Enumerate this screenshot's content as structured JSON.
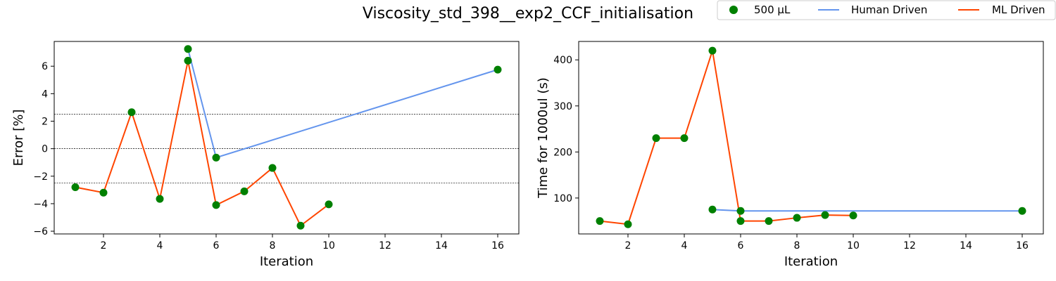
{
  "figure": {
    "title": "Viscosity_std_398__exp2_CCF_initialisation"
  },
  "legend": {
    "placement": "top-right",
    "entries": [
      {
        "label": "500 µL",
        "kind": "marker",
        "color": "#008000"
      },
      {
        "label": "Human Driven",
        "kind": "line",
        "color": "#6495ED"
      },
      {
        "label": "ML Driven",
        "kind": "line",
        "color": "#FF4500"
      }
    ]
  },
  "chart_data": [
    {
      "type": "line",
      "xlabel": "Iteration",
      "ylabel": "Error [%]",
      "xlim": [
        0.25,
        16.75
      ],
      "ylim": [
        -6.2,
        7.8
      ],
      "xticks": [
        2,
        4,
        6,
        8,
        10,
        12,
        14,
        16
      ],
      "yticks": [
        -6,
        -4,
        -2,
        0,
        2,
        4,
        6
      ],
      "grid": false,
      "hlines": [
        2.5,
        0,
        -2.5
      ],
      "series": [
        {
          "name": "ML Driven",
          "color": "#FF4500",
          "x": [
            1,
            2,
            3,
            4,
            5,
            6,
            7,
            8,
            9,
            10
          ],
          "y": [
            -2.8,
            -3.2,
            2.65,
            -3.65,
            6.4,
            -4.1,
            -3.1,
            -1.4,
            -5.6,
            -4.05
          ]
        },
        {
          "name": "Human Driven",
          "color": "#6495ED",
          "x": [
            5,
            6,
            16
          ],
          "y": [
            7.25,
            -0.65,
            5.75
          ]
        },
        {
          "name": "500 µL",
          "color": "#008000",
          "marker": true,
          "x": [
            1,
            2,
            3,
            4,
            5,
            6,
            7,
            8,
            9,
            10,
            5,
            6,
            16
          ],
          "y": [
            -2.8,
            -3.2,
            2.65,
            -3.65,
            6.4,
            -4.1,
            -3.1,
            -1.4,
            -5.6,
            -4.05,
            7.25,
            -0.65,
            5.75
          ]
        }
      ]
    },
    {
      "type": "line",
      "xlabel": "Iteration",
      "ylabel": "Time for 1000ul (s)",
      "xlim": [
        0.25,
        16.75
      ],
      "ylim": [
        22,
        440
      ],
      "xticks": [
        2,
        4,
        6,
        8,
        10,
        12,
        14,
        16
      ],
      "yticks": [
        100,
        200,
        300,
        400
      ],
      "grid": false,
      "hlines": [],
      "series": [
        {
          "name": "ML Driven",
          "color": "#FF4500",
          "x": [
            1,
            2,
            3,
            4,
            5,
            6,
            7,
            8,
            9,
            10
          ],
          "y": [
            50,
            43,
            230,
            230,
            420,
            50,
            50,
            57,
            63,
            62
          ]
        },
        {
          "name": "Human Driven",
          "color": "#6495ED",
          "x": [
            5,
            6,
            16
          ],
          "y": [
            75,
            72,
            72
          ]
        },
        {
          "name": "500 µL",
          "color": "#008000",
          "marker": true,
          "x": [
            1,
            2,
            3,
            4,
            5,
            6,
            7,
            8,
            9,
            10,
            5,
            6,
            16
          ],
          "y": [
            50,
            43,
            230,
            230,
            420,
            50,
            50,
            57,
            63,
            62,
            75,
            72,
            72
          ]
        }
      ]
    }
  ]
}
